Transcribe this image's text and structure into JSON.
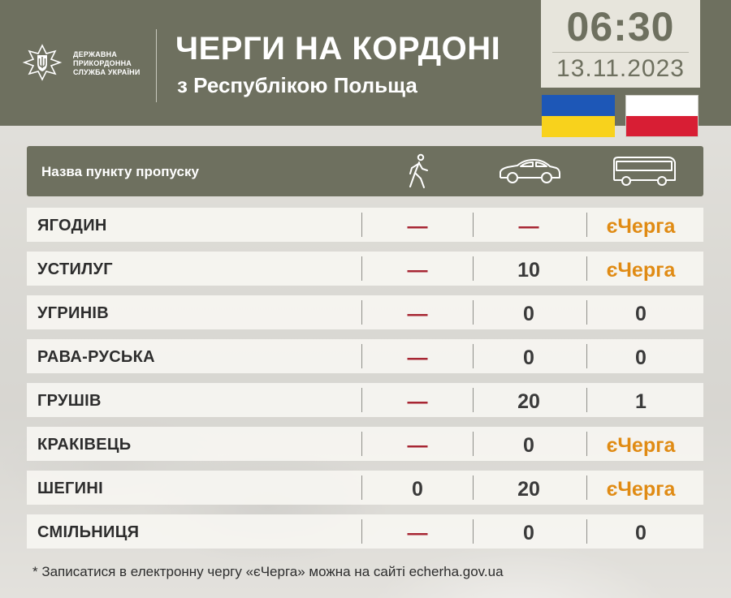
{
  "header": {
    "org_lines": [
      "ДЕРЖАВНА",
      "ПРИКОРДОННА",
      "СЛУЖБА УКРАЇНИ"
    ],
    "title": "ЧЕРГИ НА КОРДОНІ",
    "subtitle": "з Республікою Польща",
    "time": "06:30",
    "date": "13.11.2023",
    "emblem_icon": "shield-trident-emblem-icon"
  },
  "flags": {
    "ukraine": {
      "top": "#1d57b7",
      "bottom": "#f8d21c"
    },
    "poland": {
      "top": "#ffffff",
      "bottom": "#d81e34"
    }
  },
  "table": {
    "column_label": "Назва пункту пропуску",
    "column_icons": [
      "pedestrian-icon",
      "car-icon",
      "bus-icon"
    ],
    "rows": [
      {
        "name": "ЯГОДИН",
        "pedestrian": "—",
        "car": "—",
        "bus": "єЧерга"
      },
      {
        "name": "УСТИЛУГ",
        "pedestrian": "—",
        "car": "10",
        "bus": "єЧерга"
      },
      {
        "name": "УГРИНІВ",
        "pedestrian": "—",
        "car": "0",
        "bus": "0"
      },
      {
        "name": "РАВА-РУСЬКА",
        "pedestrian": "—",
        "car": "0",
        "bus": "0"
      },
      {
        "name": "ГРУШІВ",
        "pedestrian": "—",
        "car": "20",
        "bus": "1"
      },
      {
        "name": "КРАКІВЕЦЬ",
        "pedestrian": "—",
        "car": "0",
        "bus": "єЧерга"
      },
      {
        "name": "ШЕГИНІ",
        "pedestrian": "0",
        "car": "20",
        "bus": "єЧерга"
      },
      {
        "name": "СМІЛЬНИЦЯ",
        "pedestrian": "—",
        "car": "0",
        "bus": "0"
      }
    ]
  },
  "footnote": "* Записатися в електронну чергу «єЧерга» можна на сайті echerha.gov.ua",
  "colors": {
    "header_bg": "#6e705f",
    "dash": "#a72633",
    "equeue": "#e08b14"
  }
}
